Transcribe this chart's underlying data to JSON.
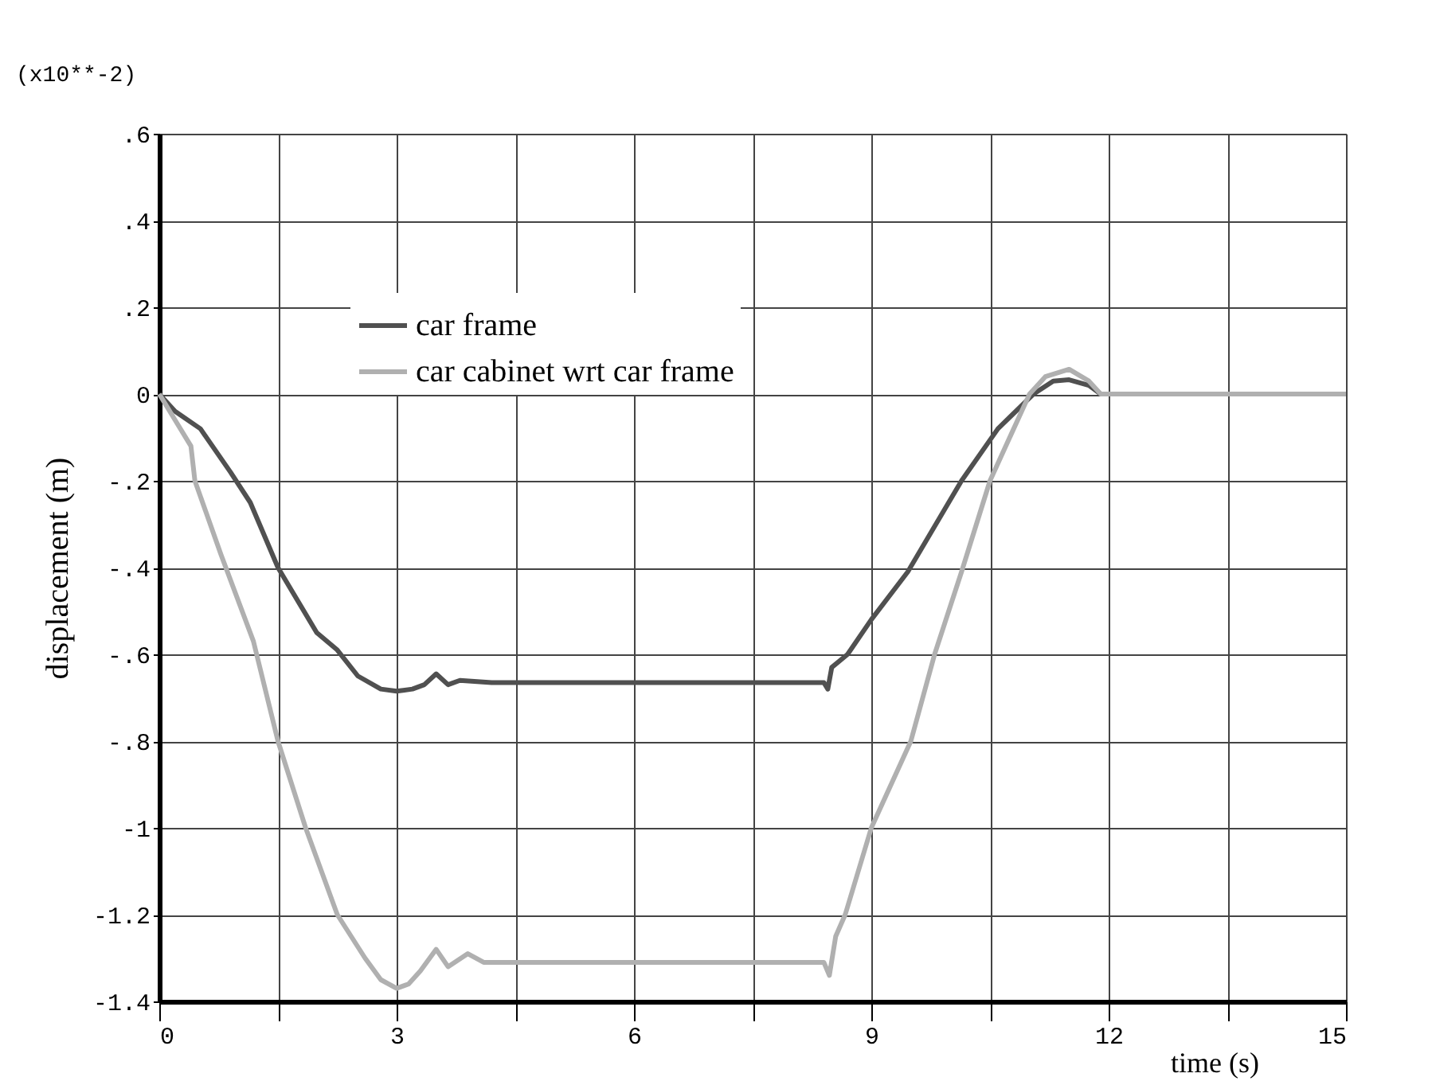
{
  "chart_data": {
    "type": "line",
    "xlabel": "time (s)",
    "ylabel": "displacement (m)",
    "annotations": [
      "(x10**-2)"
    ],
    "xlim": [
      0,
      15
    ],
    "ylim": [
      -1.4,
      0.6
    ],
    "xticks": [
      0,
      {
        "value": 1.5,
        "label": null
      },
      3,
      {
        "value": 4.5,
        "label": null
      },
      6,
      {
        "value": 7.5,
        "label": null
      },
      9,
      {
        "value": 10.5,
        "label": null
      },
      12,
      {
        "value": 13.5,
        "label": null
      },
      15
    ],
    "yticks": [
      {
        "value": 0.6,
        "label": ".6"
      },
      {
        "value": 0.4,
        "label": ".4"
      },
      {
        "value": 0.2,
        "label": ".2"
      },
      0,
      {
        "value": -0.2,
        "label": "-.2"
      },
      {
        "value": -0.4,
        "label": "-.4"
      },
      {
        "value": -0.6,
        "label": "-.6"
      },
      {
        "value": -0.8,
        "label": "-.8"
      },
      -1,
      {
        "value": -1.2,
        "label": "-1.2"
      },
      {
        "value": -1.4,
        "label": "-1.4"
      }
    ],
    "grid": true,
    "legend": "top left",
    "line_style": "solid",
    "marker": "none",
    "series": [
      {
        "name": "car frame",
        "color": "#505050",
        "x": [
          0,
          0.2,
          0.52,
          0.9,
          1.15,
          1.5,
          1.99,
          2.25,
          2.51,
          2.8,
          3.0,
          3.2,
          3.35,
          3.5,
          3.65,
          3.8,
          4.2,
          5,
          6,
          7,
          8,
          8.4,
          8.45,
          8.5,
          8.7,
          9.0,
          9.46,
          10.14,
          10.6,
          11.05,
          11.3,
          11.5,
          11.75,
          11.9,
          12.2,
          12.6,
          15
        ],
        "values": [
          0,
          -0.04,
          -0.08,
          -0.18,
          -0.25,
          -0.4,
          -0.55,
          -0.59,
          -0.65,
          -0.68,
          -0.685,
          -0.68,
          -0.67,
          -0.645,
          -0.67,
          -0.66,
          -0.665,
          -0.665,
          -0.665,
          -0.665,
          -0.665,
          -0.665,
          -0.68,
          -0.63,
          -0.6,
          -0.52,
          -0.41,
          -0.2,
          -0.08,
          0,
          0.03,
          0.033,
          0.02,
          0,
          0,
          0,
          0
        ]
      },
      {
        "name": "car cabinet wrt car frame",
        "color": "#b0b0b0",
        "x": [
          0,
          0.2,
          0.4,
          0.45,
          0.78,
          1.19,
          1.5,
          1.85,
          2.25,
          2.6,
          2.8,
          3.0,
          3.15,
          3.3,
          3.5,
          3.65,
          3.9,
          4.1,
          4.5,
          5,
          6,
          7,
          8,
          8.4,
          8.47,
          8.55,
          8.67,
          9.0,
          9.5,
          9.8,
          10.14,
          10.5,
          11.0,
          11.2,
          11.5,
          11.75,
          11.9,
          12.2,
          12.6,
          15
        ],
        "values": [
          0,
          -0.06,
          -0.12,
          -0.2,
          -0.37,
          -0.57,
          -0.8,
          -1.0,
          -1.2,
          -1.3,
          -1.35,
          -1.37,
          -1.36,
          -1.33,
          -1.28,
          -1.32,
          -1.29,
          -1.31,
          -1.31,
          -1.31,
          -1.31,
          -1.31,
          -1.31,
          -1.31,
          -1.34,
          -1.25,
          -1.2,
          -1.0,
          -0.8,
          -0.6,
          -0.41,
          -0.2,
          0,
          0.04,
          0.057,
          0.03,
          0,
          0,
          0,
          0
        ]
      }
    ]
  }
}
